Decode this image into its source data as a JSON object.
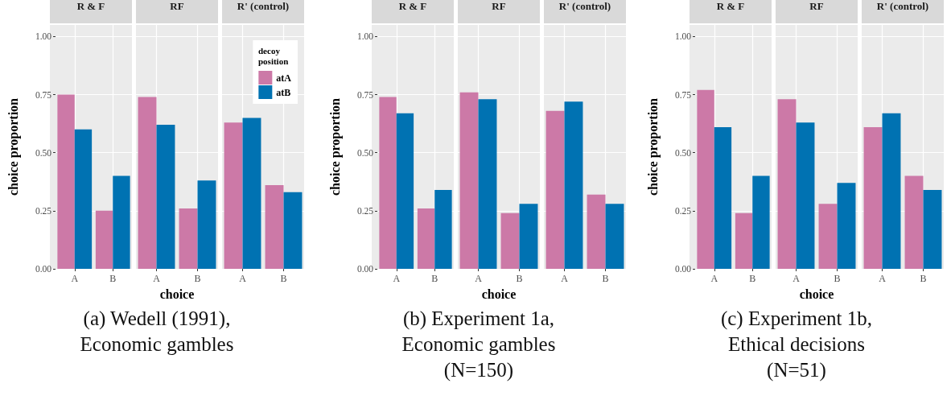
{
  "chart_data": [
    {
      "type": "bar",
      "title": "R & F",
      "ylabel": "choice proportion",
      "categories": [
        "A",
        "B"
      ],
      "series": [
        {
          "color": "#cc79a7",
          "values": [
            0.75,
            0.25
          ]
        },
        {
          "color": "#0072b2",
          "values": [
            0.6,
            0.4
          ]
        }
      ],
      "ylim": [
        0,
        1.05
      ],
      "yticks": [
        {
          "value": 0,
          "label": "0.00"
        },
        {
          "value": 0.25,
          "label": "0.25"
        },
        {
          "value": 0.5,
          "label": "0.50"
        },
        {
          "value": 0.75,
          "label": "0.75"
        },
        {
          "value": 1,
          "label": "1.00"
        }
      ],
      "grid": true
    },
    {
      "type": "bar",
      "title": "RF",
      "xlabel": "choice",
      "annotations": [
        "(a) Wedell (1991), Economic gambles"
      ],
      "categories": [
        "A",
        "B"
      ],
      "series": [
        {
          "color": "#cc79a7",
          "values": [
            0.74,
            0.26
          ]
        },
        {
          "color": "#0072b2",
          "values": [
            0.62,
            0.38
          ]
        }
      ],
      "ylim": [
        0,
        1.05
      ],
      "yticks": [
        {
          "value": 0,
          "label": "0.00"
        },
        {
          "value": 0.25,
          "label": "0.25"
        },
        {
          "value": 0.5,
          "label": "0.50"
        },
        {
          "value": 0.75,
          "label": "0.75"
        },
        {
          "value": 1,
          "label": "1.00"
        }
      ],
      "grid": true,
      "tick_labels": "x"
    },
    {
      "type": "bar",
      "title": "R' (control)",
      "legend_title": "decoy position",
      "legend": "top right",
      "categories": [
        "A",
        "B"
      ],
      "series": [
        {
          "name": "atA",
          "color": "#cc79a7",
          "values": [
            0.63,
            0.36
          ]
        },
        {
          "name": "atB",
          "color": "#0072b2",
          "values": [
            0.65,
            0.33
          ]
        }
      ],
      "ylim": [
        0,
        1.05
      ],
      "yticks": [
        {
          "value": 0,
          "label": "0.00"
        },
        {
          "value": 0.25,
          "label": "0.25"
        },
        {
          "value": 0.5,
          "label": "0.50"
        },
        {
          "value": 0.75,
          "label": "0.75"
        },
        {
          "value": 1,
          "label": "1.00"
        }
      ],
      "grid": true,
      "tick_labels": "x"
    },
    {
      "type": "bar",
      "title": "R & F",
      "ylabel": "choice proportion",
      "categories": [
        "A",
        "B"
      ],
      "series": [
        {
          "color": "#cc79a7",
          "values": [
            0.74,
            0.26
          ]
        },
        {
          "color": "#0072b2",
          "values": [
            0.67,
            0.34
          ]
        }
      ],
      "ylim": [
        0,
        1.05
      ],
      "yticks": [
        {
          "value": 0,
          "label": "0.00"
        },
        {
          "value": 0.25,
          "label": "0.25"
        },
        {
          "value": 0.5,
          "label": "0.50"
        },
        {
          "value": 0.75,
          "label": "0.75"
        },
        {
          "value": 1,
          "label": "1.00"
        }
      ],
      "grid": true
    },
    {
      "type": "bar",
      "title": "RF",
      "xlabel": "choice",
      "annotations": [
        "(b) Experiment 1a, Economic gambles (N=150)"
      ],
      "categories": [
        "A",
        "B"
      ],
      "series": [
        {
          "color": "#cc79a7",
          "values": [
            0.76,
            0.24
          ]
        },
        {
          "color": "#0072b2",
          "values": [
            0.73,
            0.28
          ]
        }
      ],
      "ylim": [
        0,
        1.05
      ],
      "yticks": [
        {
          "value": 0,
          "label": "0.00"
        },
        {
          "value": 0.25,
          "label": "0.25"
        },
        {
          "value": 0.5,
          "label": "0.50"
        },
        {
          "value": 0.75,
          "label": "0.75"
        },
        {
          "value": 1,
          "label": "1.00"
        }
      ],
      "grid": true,
      "tick_labels": "x"
    },
    {
      "type": "bar",
      "title": "R' (control)",
      "categories": [
        "A",
        "B"
      ],
      "series": [
        {
          "color": "#cc79a7",
          "values": [
            0.68,
            0.32
          ]
        },
        {
          "color": "#0072b2",
          "values": [
            0.72,
            0.28
          ]
        }
      ],
      "ylim": [
        0,
        1.05
      ],
      "yticks": [
        {
          "value": 0,
          "label": "0.00"
        },
        {
          "value": 0.25,
          "label": "0.25"
        },
        {
          "value": 0.5,
          "label": "0.50"
        },
        {
          "value": 0.75,
          "label": "0.75"
        },
        {
          "value": 1,
          "label": "1.00"
        }
      ],
      "grid": true,
      "tick_labels": "x"
    },
    {
      "type": "bar",
      "title": "R & F",
      "ylabel": "choice proportion",
      "categories": [
        "A",
        "B"
      ],
      "series": [
        {
          "color": "#cc79a7",
          "values": [
            0.77,
            0.24
          ]
        },
        {
          "color": "#0072b2",
          "values": [
            0.61,
            0.4
          ]
        }
      ],
      "ylim": [
        0,
        1.05
      ],
      "yticks": [
        {
          "value": 0,
          "label": "0.00"
        },
        {
          "value": 0.25,
          "label": "0.25"
        },
        {
          "value": 0.5,
          "label": "0.50"
        },
        {
          "value": 0.75,
          "label": "0.75"
        },
        {
          "value": 1,
          "label": "1.00"
        }
      ],
      "grid": true
    },
    {
      "type": "bar",
      "title": "RF",
      "xlabel": "choice",
      "annotations": [
        "(c) Experiment 1b, Ethical decisions (N=51)"
      ],
      "categories": [
        "A",
        "B"
      ],
      "series": [
        {
          "color": "#cc79a7",
          "values": [
            0.73,
            0.28
          ]
        },
        {
          "color": "#0072b2",
          "values": [
            0.63,
            0.37
          ]
        }
      ],
      "ylim": [
        0,
        1.05
      ],
      "yticks": [
        {
          "value": 0,
          "label": "0.00"
        },
        {
          "value": 0.25,
          "label": "0.25"
        },
        {
          "value": 0.5,
          "label": "0.50"
        },
        {
          "value": 0.75,
          "label": "0.75"
        },
        {
          "value": 1,
          "label": "1.00"
        }
      ],
      "grid": true,
      "tick_labels": "x"
    },
    {
      "type": "bar",
      "title": "R' (control)",
      "categories": [
        "A",
        "B"
      ],
      "series": [
        {
          "color": "#cc79a7",
          "values": [
            0.61,
            0.4
          ]
        },
        {
          "color": "#0072b2",
          "values": [
            0.67,
            0.34
          ]
        }
      ],
      "ylim": [
        0,
        1.05
      ],
      "yticks": [
        {
          "value": 0,
          "label": "0.00"
        },
        {
          "value": 0.25,
          "label": "0.25"
        },
        {
          "value": 0.5,
          "label": "0.50"
        },
        {
          "value": 0.75,
          "label": "0.75"
        },
        {
          "value": 1,
          "label": "1.00"
        }
      ],
      "grid": true,
      "tick_labels": "x"
    }
  ]
}
